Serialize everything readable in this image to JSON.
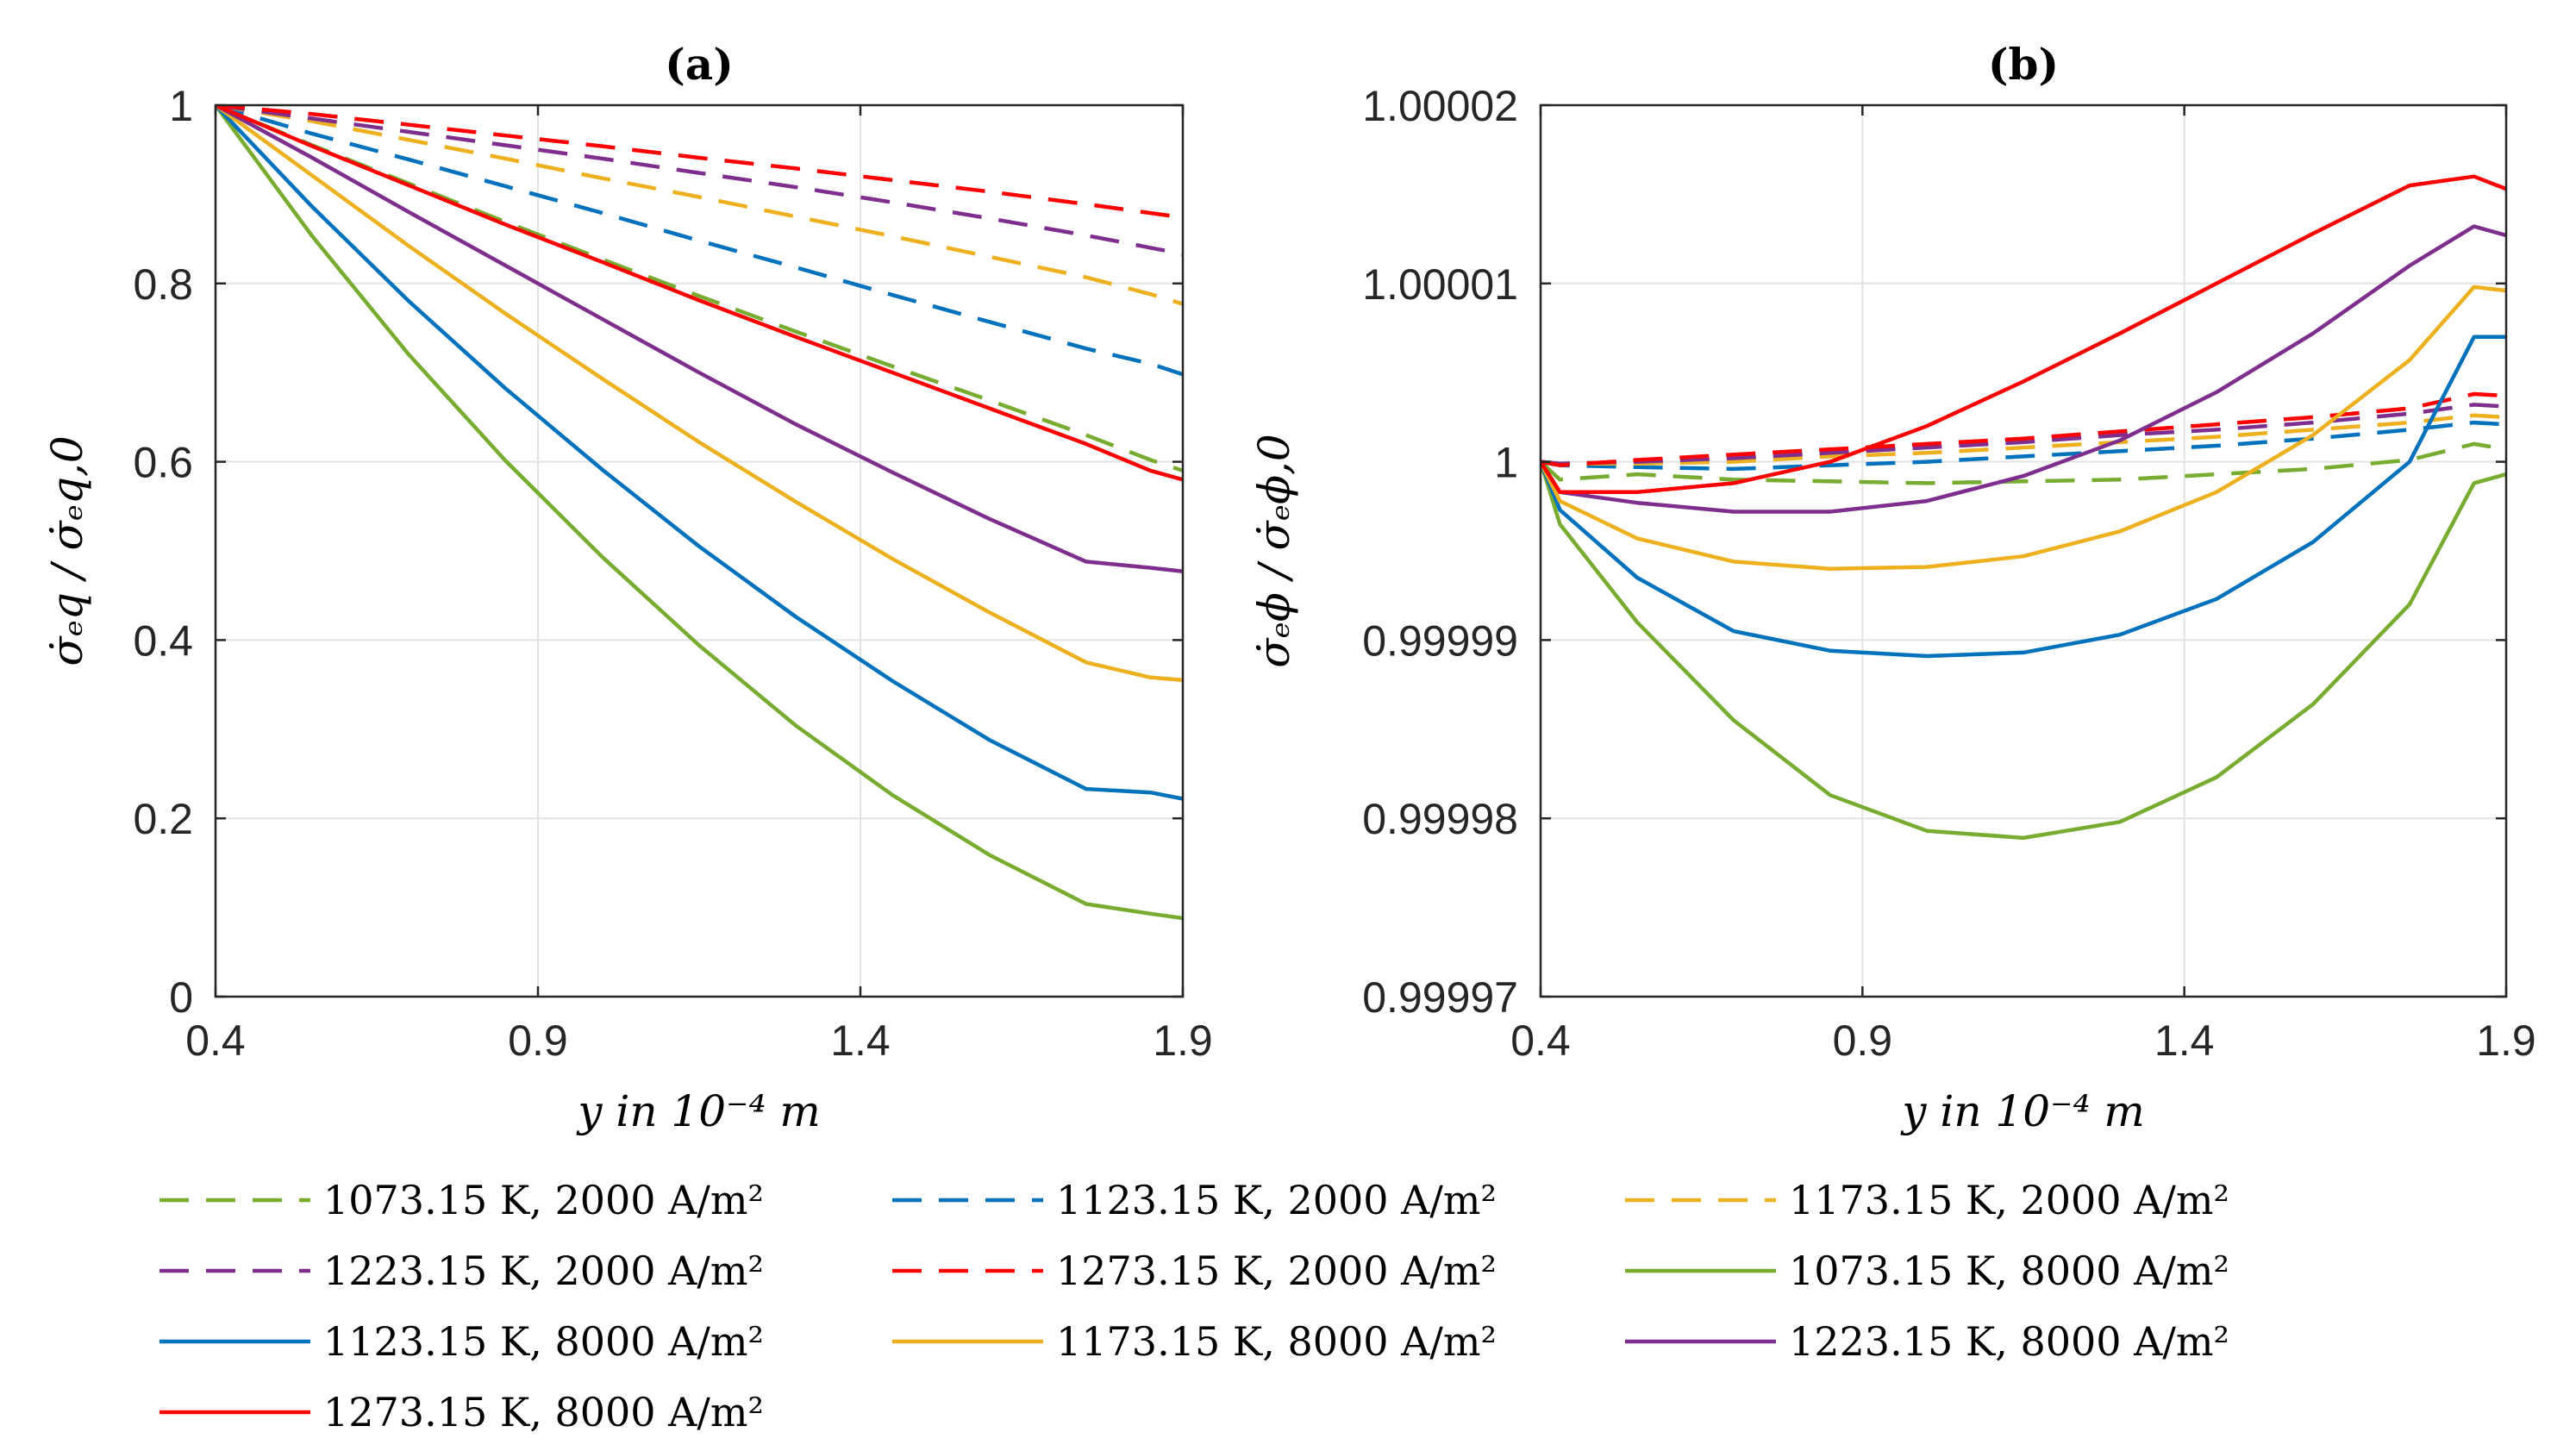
{
  "chart_data": [
    {
      "type": "line",
      "title": "(a)",
      "xlabel": "y in 10⁻⁴ m",
      "ylabel": "σ̇ₑq / σ̇ₑq,0",
      "xlim": [
        0.4,
        1.9
      ],
      "ylim": [
        0,
        1
      ],
      "xticks": [
        "0.4",
        "0.9",
        "1.4",
        "1.9"
      ],
      "yticks": [
        "0",
        "0.2",
        "0.4",
        "0.6",
        "0.8",
        "1"
      ],
      "grid": true,
      "x": [
        0.4,
        0.55,
        0.7,
        0.85,
        1.0,
        1.15,
        1.3,
        1.45,
        1.6,
        1.75,
        1.85,
        1.9
      ],
      "series": [
        {
          "name": "1073.15 K, 2000 A/m²",
          "color": "#77AC30",
          "dash": true,
          "values": [
            1.0,
            0.955,
            0.912,
            0.869,
            0.827,
            0.786,
            0.746,
            0.707,
            0.669,
            0.63,
            0.602,
            0.59
          ]
        },
        {
          "name": "1123.15 K, 2000 A/m²",
          "color": "#0072BD",
          "dash": true,
          "values": [
            1.0,
            0.968,
            0.939,
            0.909,
            0.879,
            0.848,
            0.818,
            0.787,
            0.757,
            0.727,
            0.71,
            0.698
          ]
        },
        {
          "name": "1173.15 K, 2000 A/m²",
          "color": "#EDB120",
          "dash": true,
          "values": [
            1.0,
            0.982,
            0.961,
            0.94,
            0.918,
            0.897,
            0.875,
            0.853,
            0.83,
            0.807,
            0.788,
            0.777
          ]
        },
        {
          "name": "1223.15 K, 2000 A/m²",
          "color": "#7E2F8E",
          "dash": true,
          "values": [
            1.0,
            0.985,
            0.97,
            0.955,
            0.94,
            0.924,
            0.908,
            0.891,
            0.873,
            0.854,
            0.84,
            0.833
          ]
        },
        {
          "name": "1273.15 K, 2000 A/m²",
          "color": "#FF0000",
          "dash": true,
          "values": [
            1.0,
            0.99,
            0.978,
            0.966,
            0.954,
            0.941,
            0.929,
            0.916,
            0.903,
            0.889,
            0.879,
            0.874
          ]
        },
        {
          "name": "1073.15 K, 8000 A/m²",
          "color": "#77AC30",
          "dash": false,
          "values": [
            1.0,
            0.853,
            0.72,
            0.601,
            0.493,
            0.394,
            0.304,
            0.226,
            0.159,
            0.104,
            0.093,
            0.088
          ]
        },
        {
          "name": "1123.15 K, 8000 A/m²",
          "color": "#0072BD",
          "dash": false,
          "values": [
            1.0,
            0.886,
            0.78,
            0.682,
            0.591,
            0.505,
            0.426,
            0.354,
            0.288,
            0.233,
            0.229,
            0.222
          ]
        },
        {
          "name": "1173.15 K, 8000 A/m²",
          "color": "#EDB120",
          "dash": false,
          "values": [
            1.0,
            0.921,
            0.842,
            0.766,
            0.693,
            0.622,
            0.555,
            0.491,
            0.431,
            0.375,
            0.358,
            0.355
          ]
        },
        {
          "name": "1223.15 K, 8000 A/m²",
          "color": "#7E2F8E",
          "dash": false,
          "values": [
            1.0,
            0.941,
            0.88,
            0.82,
            0.76,
            0.7,
            0.642,
            0.588,
            0.536,
            0.488,
            0.481,
            0.477
          ]
        },
        {
          "name": "1273.15 K, 8000 A/m²",
          "color": "#FF0000",
          "dash": false,
          "values": [
            1.0,
            0.954,
            0.91,
            0.866,
            0.824,
            0.781,
            0.74,
            0.7,
            0.66,
            0.62,
            0.59,
            0.58
          ]
        }
      ]
    },
    {
      "type": "line",
      "title": "(b)",
      "xlabel": "y in 10⁻⁴ m",
      "ylabel": "σ̇ₑϕ / σ̇ₑϕ,0",
      "xlim": [
        0.4,
        1.9
      ],
      "ylim": [
        0.99997,
        1.00002
      ],
      "xticks": [
        "0.4",
        "0.9",
        "1.4",
        "1.9"
      ],
      "yticks": [
        "0.99997",
        "0.99998",
        "0.99999",
        "1",
        "1.00001",
        "1.00002"
      ],
      "grid": true,
      "x": [
        0.4,
        0.43,
        0.55,
        0.7,
        0.85,
        1.0,
        1.15,
        1.3,
        1.45,
        1.6,
        1.75,
        1.85,
        1.9
      ],
      "series": [
        {
          "name": "1073.15 K, 2000 A/m²",
          "color": "#77AC30",
          "dash": true,
          "values": [
            1.0,
            0.999999,
            0.9999993,
            0.999999,
            0.9999989,
            0.9999988,
            0.9999989,
            0.999999,
            0.9999993,
            0.9999996,
            1.0000001,
            1.000001,
            1.0000007
          ]
        },
        {
          "name": "1123.15 K, 2000 A/m²",
          "color": "#0072BD",
          "dash": true,
          "values": [
            1.0,
            0.9999998,
            0.9999997,
            0.9999996,
            0.9999998,
            1.0,
            1.0000003,
            1.0000006,
            1.0000009,
            1.0000013,
            1.0000018,
            1.0000022,
            1.0000021
          ]
        },
        {
          "name": "1173.15 K, 2000 A/m²",
          "color": "#EDB120",
          "dash": true,
          "values": [
            1.0,
            0.9999999,
            0.9999999,
            1.0,
            1.0000003,
            1.0000005,
            1.0000008,
            1.0000011,
            1.0000014,
            1.0000018,
            1.0000022,
            1.0000026,
            1.0000025
          ]
        },
        {
          "name": "1223.15 K, 2000 A/m²",
          "color": "#7E2F8E",
          "dash": true,
          "values": [
            1.0,
            0.9999999,
            1.0,
            1.0000002,
            1.0000005,
            1.0000008,
            1.0000011,
            1.0000015,
            1.0000018,
            1.0000022,
            1.0000027,
            1.0000032,
            1.0000031
          ]
        },
        {
          "name": "1273.15 K, 2000 A/m²",
          "color": "#FF0000",
          "dash": true,
          "values": [
            1.0,
            0.9999998,
            1.0000001,
            1.0000004,
            1.0000007,
            1.000001,
            1.0000013,
            1.0000017,
            1.0000021,
            1.0000025,
            1.000003,
            1.0000038,
            1.0000037
          ]
        },
        {
          "name": "1073.15 K, 8000 A/m²",
          "color": "#77AC30",
          "dash": false,
          "values": [
            1.0,
            0.9999965,
            0.999991,
            0.9999855,
            0.9999813,
            0.9999793,
            0.9999789,
            0.9999798,
            0.9999823,
            0.9999864,
            0.999992,
            0.9999988,
            0.9999993
          ]
        },
        {
          "name": "1123.15 K, 8000 A/m²",
          "color": "#0072BD",
          "dash": false,
          "values": [
            1.0,
            0.9999973,
            0.9999935,
            0.9999905,
            0.9999894,
            0.9999891,
            0.9999893,
            0.9999903,
            0.9999923,
            0.9999955,
            1.0,
            1.000007,
            1.000007
          ]
        },
        {
          "name": "1173.15 K, 8000 A/m²",
          "color": "#EDB120",
          "dash": false,
          "values": [
            1.0,
            0.9999978,
            0.9999957,
            0.9999944,
            0.999994,
            0.9999941,
            0.9999947,
            0.9999961,
            0.9999983,
            1.0000015,
            1.0000057,
            1.0000098,
            1.0000096
          ]
        },
        {
          "name": "1223.15 K, 8000 A/m²",
          "color": "#7E2F8E",
          "dash": false,
          "values": [
            1.0,
            0.9999983,
            0.9999977,
            0.9999972,
            0.9999972,
            0.9999978,
            0.9999992,
            1.0000012,
            1.0000039,
            1.0000072,
            1.000011,
            1.0000132,
            1.0000127
          ]
        },
        {
          "name": "1273.15 K, 8000 A/m²",
          "color": "#FF0000",
          "dash": false,
          "values": [
            1.0,
            0.9999983,
            0.9999983,
            0.9999988,
            1.0,
            1.000002,
            1.0000045,
            1.0000072,
            1.00001,
            1.0000128,
            1.0000155,
            1.000016,
            1.0000153
          ]
        }
      ]
    }
  ],
  "legend": {
    "placement": "bottom",
    "entries": [
      {
        "label": "1073.15 K, 2000 A/m²",
        "color": "#77AC30",
        "dash": true
      },
      {
        "label": "1123.15 K, 2000 A/m²",
        "color": "#0072BD",
        "dash": true
      },
      {
        "label": "1173.15 K, 2000 A/m²",
        "color": "#EDB120",
        "dash": true
      },
      {
        "label": "1223.15 K, 2000 A/m²",
        "color": "#7E2F8E",
        "dash": true
      },
      {
        "label": "1273.15 K, 2000 A/m²",
        "color": "#FF0000",
        "dash": true
      },
      {
        "label": "1073.15 K, 8000 A/m²",
        "color": "#77AC30",
        "dash": false
      },
      {
        "label": "1123.15 K, 8000 A/m²",
        "color": "#0072BD",
        "dash": false
      },
      {
        "label": "1173.15 K, 8000 A/m²",
        "color": "#EDB120",
        "dash": false
      },
      {
        "label": "1223.15 K, 8000 A/m²",
        "color": "#7E2F8E",
        "dash": false
      },
      {
        "label": "1273.15 K, 8000 A/m²",
        "color": "#FF0000",
        "dash": false
      }
    ]
  }
}
